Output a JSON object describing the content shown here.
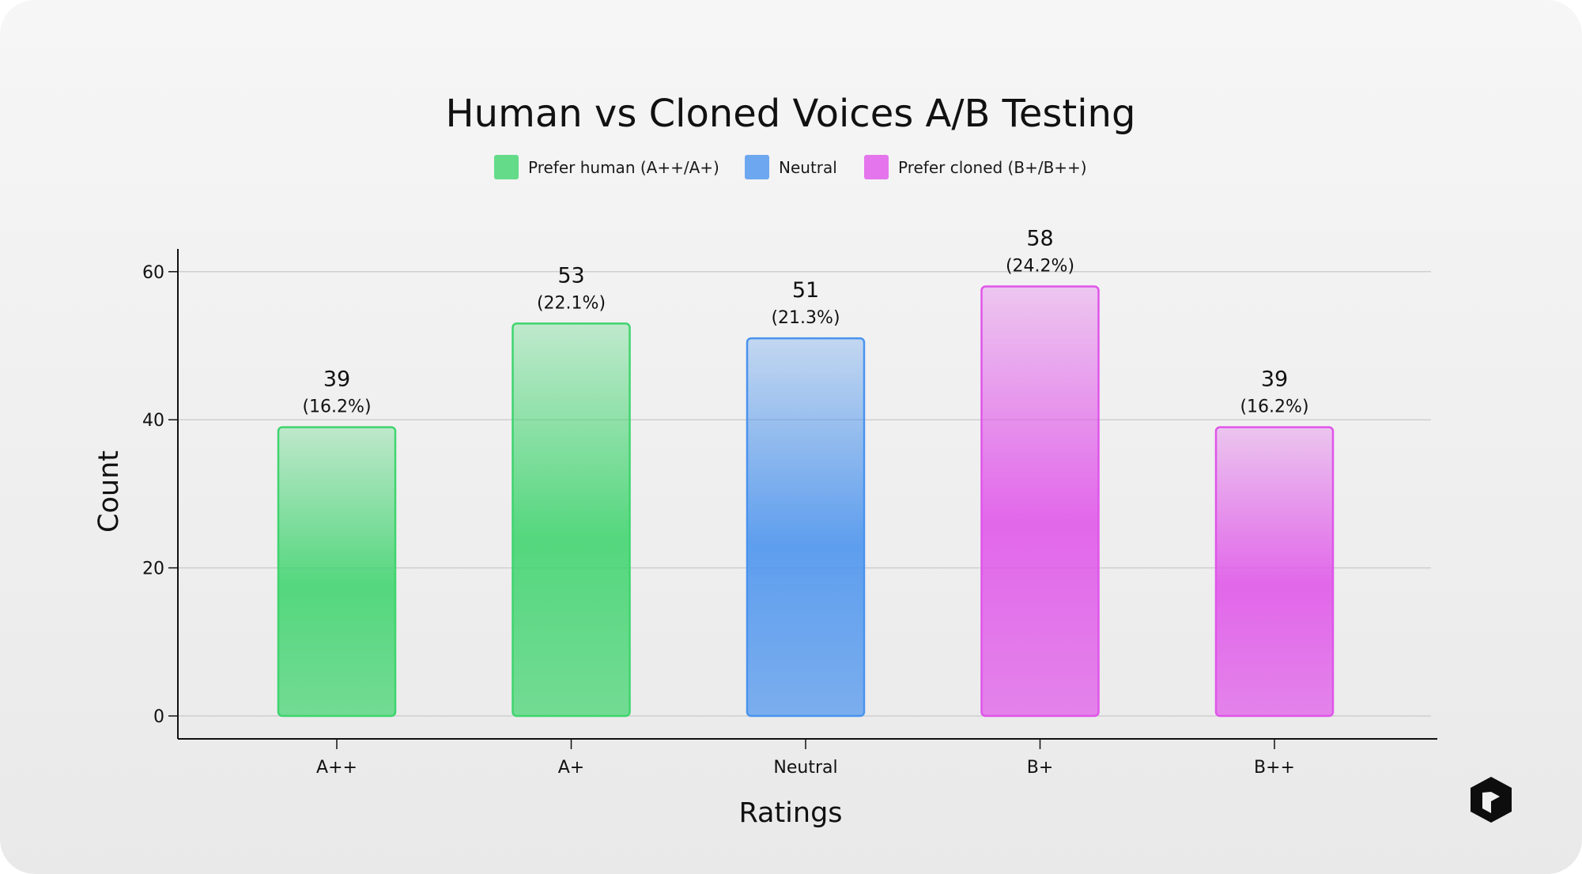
{
  "colors": {
    "human": "#3fd46e",
    "neutral": "#4a93ee",
    "cloned": "#e055ea"
  },
  "brand": {
    "icon": "cube-logo-icon"
  },
  "chart_data": {
    "type": "bar",
    "title": "Human vs Cloned Voices A/B Testing",
    "xlabel": "Ratings",
    "ylabel": "Count",
    "ylim": [
      0,
      63
    ],
    "yticks": [
      0,
      20,
      40,
      60
    ],
    "grid": true,
    "legend_position": "top-center",
    "legend": [
      {
        "label": "Prefer human (A++/A+)",
        "group": "human"
      },
      {
        "label": "Neutral",
        "group": "neutral"
      },
      {
        "label": "Prefer cloned (B+/B++)",
        "group": "cloned"
      }
    ],
    "categories": [
      "A++",
      "A+",
      "Neutral",
      "B+",
      "B++"
    ],
    "values": [
      39,
      53,
      51,
      58,
      39
    ],
    "percent_labels": [
      "(16.2%)",
      "(22.1%)",
      "(21.3%)",
      "(24.2%)",
      "(16.2%)"
    ],
    "groups": [
      "human",
      "human",
      "neutral",
      "cloned",
      "cloned"
    ]
  }
}
